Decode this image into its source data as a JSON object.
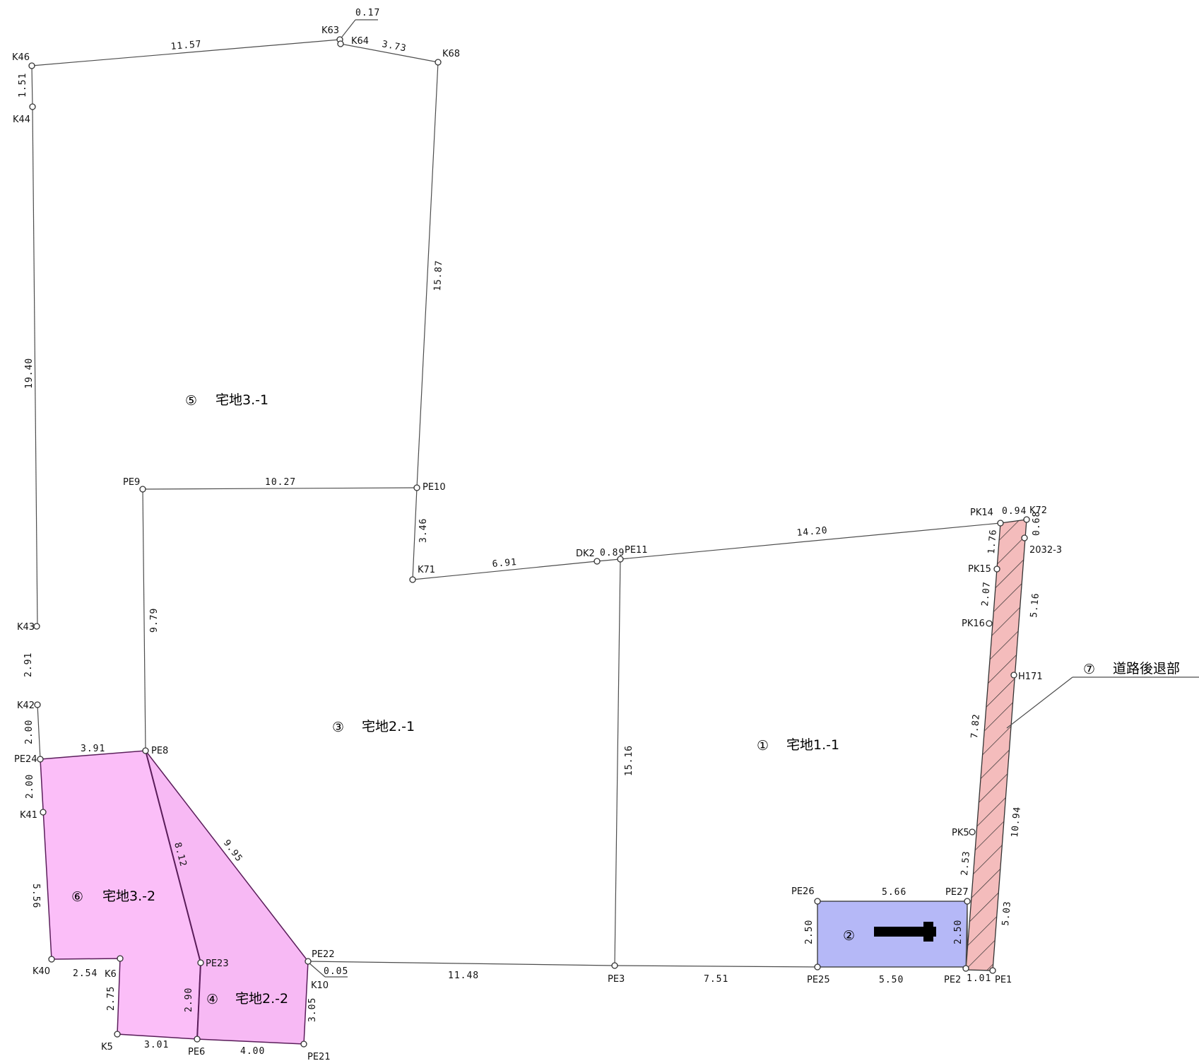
{
  "colors": {
    "parcel6_fill": "#fbbef8",
    "parcel4_fill": "#f7b9f4",
    "parcel2_fill": "#b5b8f7",
    "road_fill": "#f4bcbc",
    "hatch": "#2d2d2d",
    "boundary_pink": "#5a1d5a"
  },
  "points": {
    "K63": "K63",
    "K64": "K64",
    "K46": "K46",
    "K68": "K68",
    "K44": "K44",
    "PE9": "PE9",
    "PE10": "PE10",
    "PK14": "PK14",
    "K72": "K72",
    "K2032": "2032-3",
    "DK2": "DK2",
    "PE11": "PE11",
    "K71": "K71",
    "PK15": "PK15",
    "K43": "K43",
    "PK16": "PK16",
    "H171": "H171",
    "K42": "K42",
    "PE8": "PE8",
    "PE24": "PE24",
    "K41": "K41",
    "PK5": "PK5",
    "PE26": "PE26",
    "PE27": "PE27",
    "PE22": "PE22",
    "K10": "K10",
    "K40": "K40",
    "K6": "K6",
    "PE23": "PE23",
    "PE3": "PE3",
    "PE25": "PE25",
    "PE2": "PE2",
    "PE1": "PE1",
    "K5": "K5",
    "PE6": "PE6",
    "PE21": "PE21"
  },
  "dimensions": {
    "d_017": "0.17",
    "d_1157": "11.57",
    "d_373": "3.73",
    "d_151": "1.51",
    "d_1587": "15.87",
    "d_1940": "19.40",
    "d_1027": "10.27",
    "d_346": "3.46",
    "d_094": "0.94",
    "d_068": "0.68",
    "d_1420": "14.20",
    "d_176": "1.76",
    "d_691": "6.91",
    "d_089": "0.89",
    "d_207": "2.07",
    "d_516": "5.16",
    "d_979": "9.79",
    "d_291": "2.91",
    "d_782": "7.82",
    "d_200a": "2.00",
    "d_391": "3.91",
    "d_1516": "15.16",
    "d_200b": "2.00",
    "d_1094": "10.94",
    "d_812": "8.12",
    "d_995": "9.95",
    "d_253": "2.53",
    "d_556": "5.56",
    "d_566": "5.66",
    "d_503": "5.03",
    "d_250a": "2.50",
    "d_250b": "2.50",
    "d_005": "0.05",
    "d_254": "2.54",
    "d_1148": "11.48",
    "d_751": "7.51",
    "d_550": "5.50",
    "d_101": "1.01",
    "d_275": "2.75",
    "d_290": "2.90",
    "d_305": "3.05",
    "d_301": "3.01",
    "d_400": "4.00"
  },
  "parcels": {
    "p1": {
      "num": "①",
      "label": "宅地1.-1"
    },
    "p2": {
      "num": "②"
    },
    "p3": {
      "num": "③",
      "label": "宅地2.-1"
    },
    "p4": {
      "num": "④",
      "label": "宅地2.-2"
    },
    "p5": {
      "num": "⑤",
      "label": "宅地3.-1"
    },
    "p6": {
      "num": "⑥",
      "label": "宅地3.-2"
    },
    "p7": {
      "num": "⑦",
      "label": "道路後退部"
    }
  }
}
